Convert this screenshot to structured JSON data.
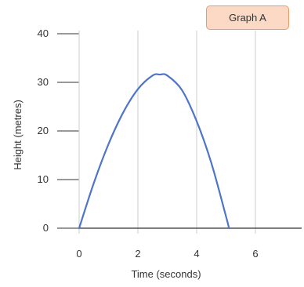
{
  "label_box": {
    "text": "Graph A"
  },
  "colors": {
    "line": "#4f74c8",
    "grid": "#d4d4d4",
    "axis": "#333333",
    "label_box_fill": "#fbd9c4",
    "label_box_border": "#ec9a63"
  },
  "chart_data": {
    "type": "line",
    "title": "",
    "xlabel": "Time (seconds)",
    "ylabel": "Height (metres)",
    "xlim": [
      0,
      7
    ],
    "ylim": [
      0,
      40
    ],
    "xticks": [
      0,
      2,
      4,
      6
    ],
    "xtick_labels": [
      "0",
      "2",
      "4",
      "6"
    ],
    "yticks": [
      0,
      10,
      20,
      30,
      40
    ],
    "ytick_labels": [
      "0",
      "10",
      "20",
      "30",
      "40"
    ],
    "grid": "vertical",
    "series": [
      {
        "x": [
          0,
          0.5,
          1,
          1.5,
          2,
          2.5,
          2.75,
          3,
          3.5,
          4,
          4.5,
          5,
          5.1
        ],
        "y": [
          0,
          9.3,
          17.3,
          23.8,
          28.6,
          31.4,
          31.6,
          31.4,
          28.4,
          22.0,
          13.4,
          2.4,
          0
        ]
      }
    ]
  }
}
